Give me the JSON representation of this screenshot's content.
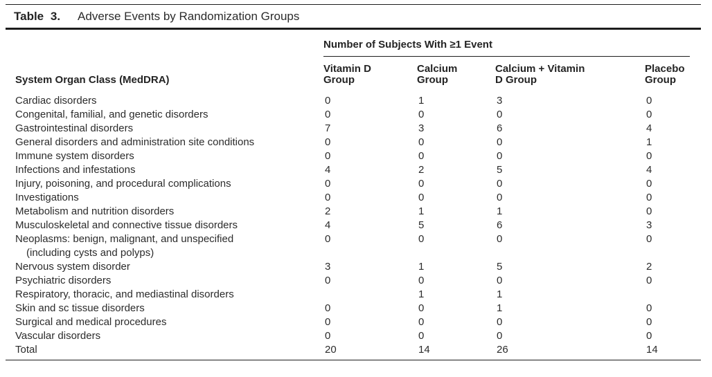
{
  "table": {
    "title_label": "Table 3.",
    "title_text": "Adverse Events by Randomization Groups",
    "spanner_header": "Number of Subjects With ≥1 Event",
    "stub_header": "System Organ Class (MedDRA)",
    "columns": [
      {
        "line1": "Vitamin D",
        "line2": "Group"
      },
      {
        "line1": "Calcium",
        "line2": "Group"
      },
      {
        "line1": "Calcium + Vitamin",
        "line2": "D Group"
      },
      {
        "line1": "Placebo",
        "line2": "Group"
      }
    ],
    "rows": [
      {
        "label": "Cardiac disorders",
        "values": [
          "0",
          "1",
          "3",
          "0"
        ]
      },
      {
        "label": "Congenital, familial, and genetic disorders",
        "values": [
          "0",
          "0",
          "0",
          "0"
        ]
      },
      {
        "label": "Gastrointestinal disorders",
        "values": [
          "7",
          "3",
          "6",
          "4"
        ]
      },
      {
        "label": "General disorders and administration site conditions",
        "values": [
          "0",
          "0",
          "0",
          "1"
        ]
      },
      {
        "label": "Immune system disorders",
        "values": [
          "0",
          "0",
          "0",
          "0"
        ]
      },
      {
        "label": "Infections and infestations",
        "values": [
          "4",
          "2",
          "5",
          "4"
        ]
      },
      {
        "label": "Injury, poisoning, and procedural complications",
        "values": [
          "0",
          "0",
          "0",
          "0"
        ]
      },
      {
        "label": "Investigations",
        "values": [
          "0",
          "0",
          "0",
          "0"
        ]
      },
      {
        "label": "Metabolism and nutrition disorders",
        "values": [
          "2",
          "1",
          "1",
          "0"
        ]
      },
      {
        "label": "Musculoskeletal and connective tissue disorders",
        "values": [
          "4",
          "5",
          "6",
          "3"
        ]
      },
      {
        "label": "Neoplasms: benign, malignant, and unspecified",
        "label_cont": "(including cysts and polyps)",
        "values": [
          "0",
          "0",
          "0",
          "0"
        ]
      },
      {
        "label": "Nervous system disorder",
        "values": [
          "3",
          "1",
          "5",
          "2"
        ]
      },
      {
        "label": "Psychiatric disorders",
        "values": [
          "0",
          "0",
          "0",
          "0"
        ]
      },
      {
        "label": "Respiratory, thoracic, and mediastinal disorders",
        "values": [
          "",
          "1",
          "1",
          ""
        ]
      },
      {
        "label": "Skin and sc tissue disorders",
        "values": [
          "0",
          "0",
          "1",
          "0"
        ]
      },
      {
        "label": "Surgical and medical procedures",
        "values": [
          "0",
          "0",
          "0",
          "0"
        ]
      },
      {
        "label": "Vascular disorders",
        "values": [
          "0",
          "0",
          "0",
          "0"
        ]
      },
      {
        "label": "Total",
        "values": [
          "20",
          "14",
          "26",
          "14"
        ]
      }
    ],
    "colors": {
      "text": "#2b2b2b",
      "rule": "#1c1c1c",
      "background": "#ffffff"
    }
  }
}
